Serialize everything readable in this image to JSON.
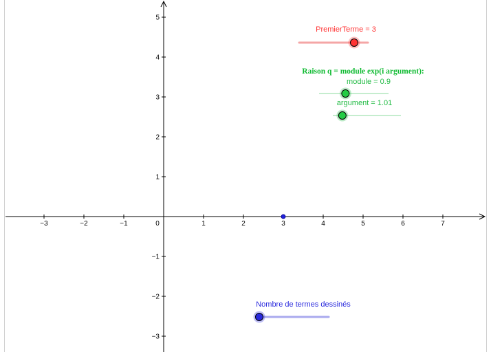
{
  "axes": {
    "x_ticks": [
      {
        "value": -3,
        "label": "−3"
      },
      {
        "value": -2,
        "label": "−2"
      },
      {
        "value": -1,
        "label": "−1"
      },
      {
        "value": 1,
        "label": "1"
      },
      {
        "value": 2,
        "label": "2"
      },
      {
        "value": 3,
        "label": "3"
      },
      {
        "value": 4,
        "label": "4"
      },
      {
        "value": 5,
        "label": "5"
      },
      {
        "value": 6,
        "label": "6"
      },
      {
        "value": 7,
        "label": "7"
      }
    ],
    "y_ticks": [
      {
        "value": 5,
        "label": "5"
      },
      {
        "value": 4,
        "label": "4"
      },
      {
        "value": 3,
        "label": "3"
      },
      {
        "value": 2,
        "label": "2"
      },
      {
        "value": 1,
        "label": "1"
      },
      {
        "value": -1,
        "label": "−1"
      },
      {
        "value": -2,
        "label": "−2"
      },
      {
        "value": -3,
        "label": "−3"
      }
    ],
    "origin_label": "0"
  },
  "point": {
    "x": 3,
    "y": 0,
    "color": "#2222dd"
  },
  "sliders": {
    "premier": {
      "label": "PremierTerme = 3",
      "value": 3,
      "fraction": 0.8,
      "color": "#ff3333"
    },
    "formula": {
      "text": "Raison q = module exp(i argument):",
      "color": "#11bb33"
    },
    "module": {
      "label": "module = 0.9",
      "value": 0.9,
      "fraction": 0.38,
      "color": "#22bb44"
    },
    "argument": {
      "label": "argument = 1.01",
      "value": 1.01,
      "fraction": 0.14,
      "color": "#22bb44"
    },
    "nombre": {
      "label": "Nombre de termes dessinés",
      "fraction": 0.0,
      "color": "#2a2add"
    }
  }
}
